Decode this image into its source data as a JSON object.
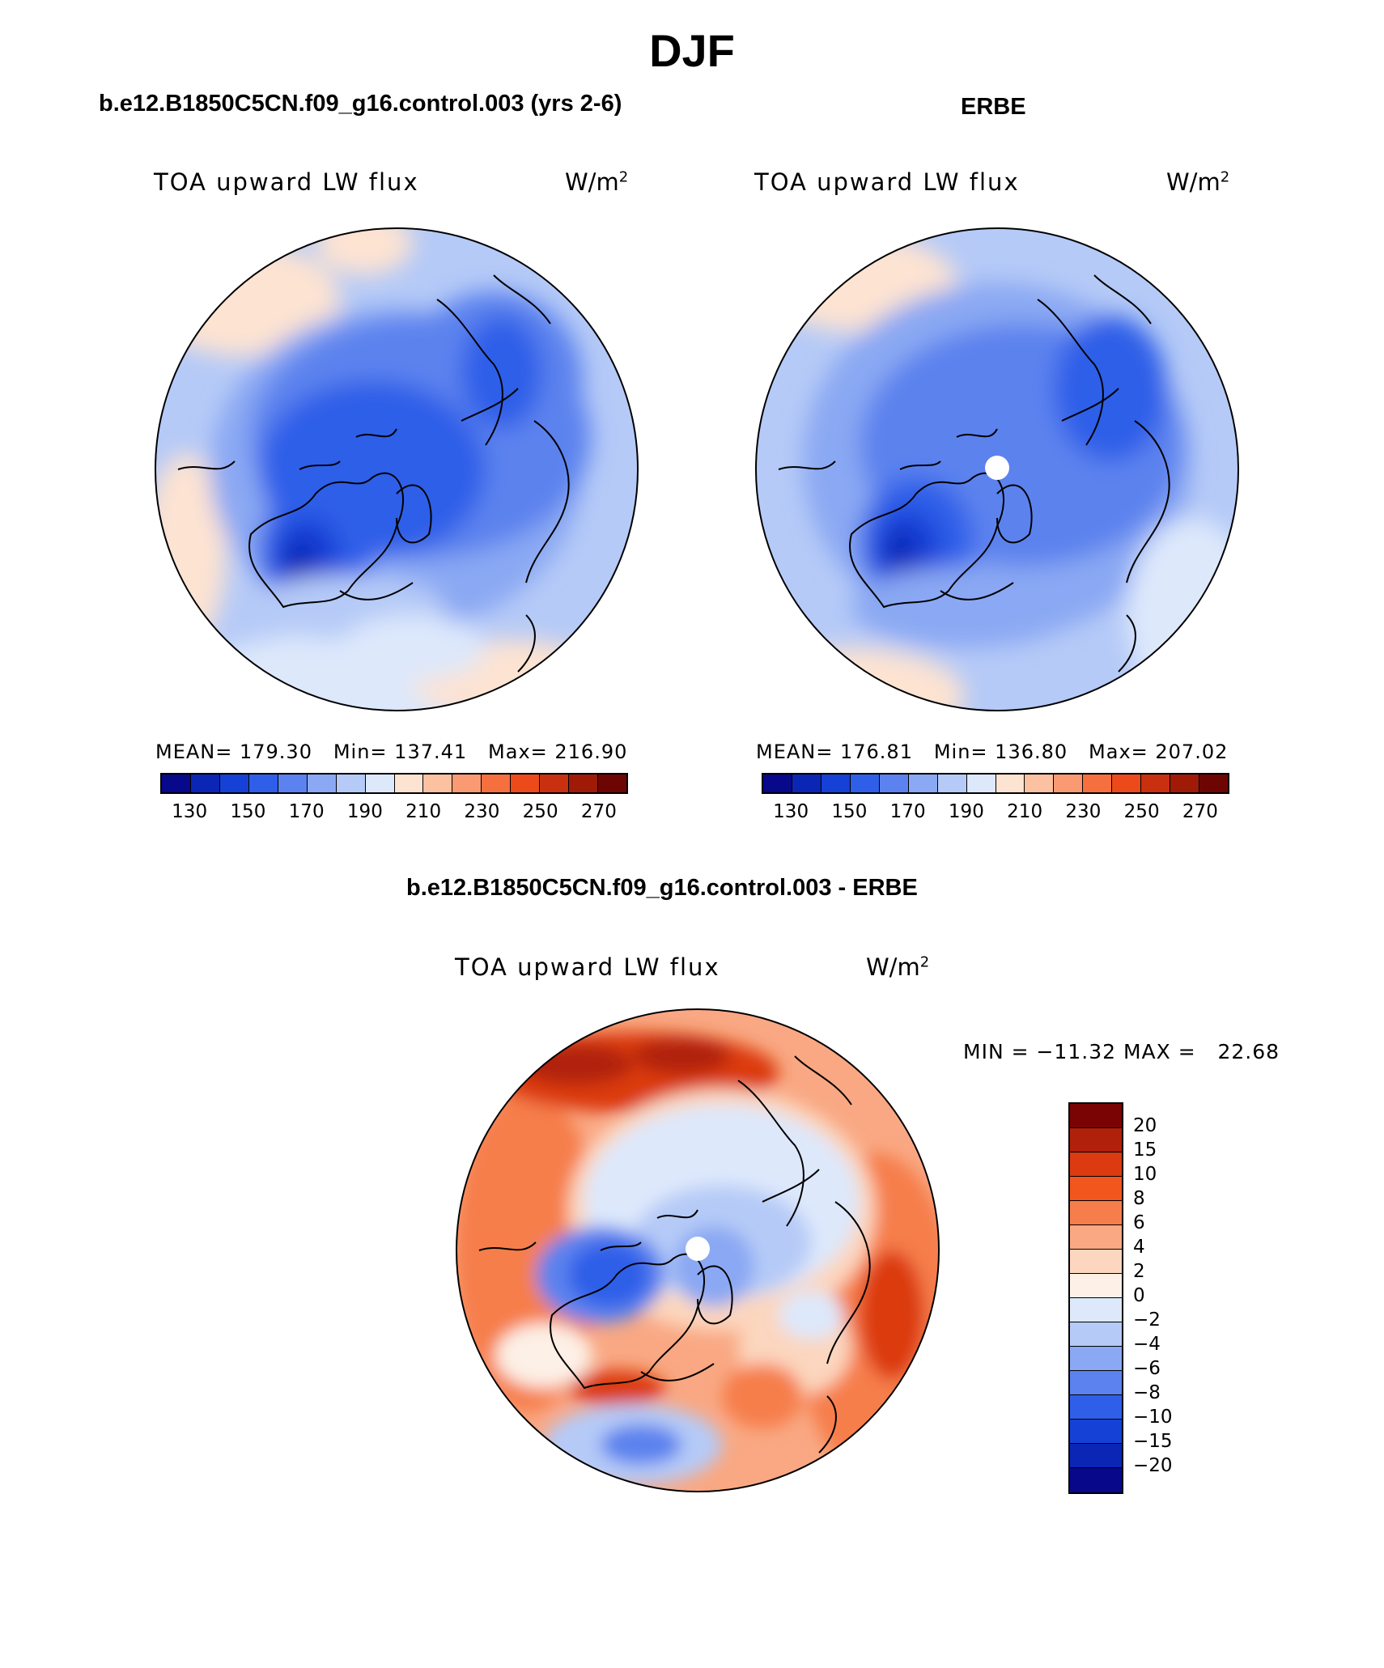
{
  "title": "DJF",
  "panels": {
    "left": {
      "run_title": "b.e12.B1850C5CN.f09_g16.control.003 (yrs 2-6)",
      "label": "TOA upward LW flux",
      "units_base": "W/m",
      "units_exp": "2",
      "stats": "MEAN= 179.30   Min= 137.41   Max= 216.90"
    },
    "right": {
      "run_title": "ERBE",
      "label": "TOA upward LW flux",
      "units_base": "W/m",
      "units_exp": "2",
      "stats": "MEAN= 176.81   Min= 136.80   Max= 207.02"
    },
    "diff": {
      "run_title": "b.e12.B1850C5CN.f09_g16.control.003 - ERBE",
      "label": "TOA upward LW flux",
      "units_base": "W/m",
      "units_exp": "2",
      "minmax": "MIN = −11.32 MAX =   22.68"
    }
  },
  "abs_colorbar": {
    "colors": [
      "#08088a",
      "#0b26b5",
      "#1641d6",
      "#2f5fe8",
      "#5b82ee",
      "#8aa8f3",
      "#b5caf7",
      "#dde8fb",
      "#fde3d2",
      "#fbc1a0",
      "#f99a72",
      "#f6703f",
      "#ec4a1b",
      "#c8300f",
      "#a01a08",
      "#6d0603"
    ],
    "tick_labels": [
      "130",
      "150",
      "170",
      "190",
      "210",
      "230",
      "250",
      "270"
    ]
  },
  "diff_colorbar": {
    "colors": [
      "#7a0303",
      "#b0200a",
      "#dc3a10",
      "#f2561c",
      "#f67e4c",
      "#f9a883",
      "#fcd6be",
      "#fdf0e6",
      "#dde8fb",
      "#b5caf7",
      "#8aa8f3",
      "#5b82ee",
      "#2f5fe8",
      "#1641d6",
      "#0b26b5",
      "#08088a"
    ],
    "tick_labels": [
      "20",
      "15",
      "10",
      "8",
      "6",
      "4",
      "2",
      "0",
      "−2",
      "−4",
      "−6",
      "−8",
      "−10",
      "−15",
      "−20"
    ]
  }
}
